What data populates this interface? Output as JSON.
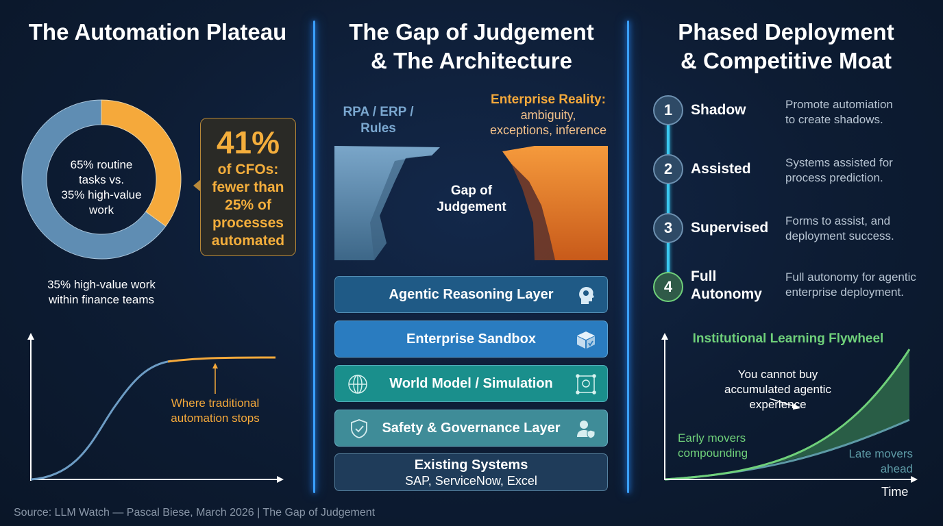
{
  "panels": {
    "left": {
      "title": "The Automation Plateau",
      "donut": {
        "center_line1": "65% routine",
        "center_line2": "tasks vs.",
        "center_line3": "35% high-value",
        "center_line4": "work",
        "caption_line1": "35% high-value work",
        "caption_line2": "within finance teams"
      },
      "callout": {
        "value": "41%",
        "line1": "of CFOs:",
        "line2": "fewer than",
        "line3": "25% of",
        "line4": "processes",
        "line5": "automated"
      },
      "plateau_label_line1": "Where traditional",
      "plateau_label_line2": "automation stops"
    },
    "middle": {
      "title_line1": "The Gap of Judgement",
      "title_line2": "& The Architecture",
      "left_cliff_line1": "RPA / ERP /",
      "left_cliff_line2": "Rules",
      "right_cliff_heading": "Enterprise Reality:",
      "right_cliff_line1": "ambiguity,",
      "right_cliff_line2": "exceptions, inference",
      "gap_line1": "Gap of",
      "gap_line2": "Judgement",
      "layers": [
        {
          "label": "Agentic Reasoning Layer",
          "icon": "head-gear-icon",
          "color": "#1f5a86"
        },
        {
          "label": "Enterprise Sandbox",
          "icon": "box-check-icon",
          "color": "#2a7cc0"
        },
        {
          "label": "World Model / Simulation",
          "icon": "globe-icon",
          "icon_right": "simulation-frame-icon",
          "color": "#1a8f8c"
        },
        {
          "label": "Safety & Governance Layer",
          "icon": "shield-check-icon",
          "icon_right": "user-shield-icon",
          "color": "#3f8c98"
        },
        {
          "label": "Existing Systems",
          "sub": "SAP, ServiceNow, Excel",
          "color": "#1f3c5a"
        }
      ]
    },
    "right": {
      "title_line1": "Phased Deployment",
      "title_line2": "& Competitive Moat",
      "steps": [
        {
          "num": "1",
          "label": "Shadow",
          "desc1": "Promote automiation",
          "desc2": "to create shadows."
        },
        {
          "num": "2",
          "label": "Assisted",
          "desc1": "Systems assisted for",
          "desc2": "process prediction."
        },
        {
          "num": "3",
          "label": "Supervised",
          "desc1": "Forms to assist, and",
          "desc2": "deployment success."
        },
        {
          "num": "4",
          "label1": "Full",
          "label2": "Autonomy",
          "desc1": "Full autonomy for agentic",
          "desc2": "enterprise deployment."
        }
      ],
      "flywheel": {
        "title": "Institutional Learning Flywheel",
        "annot1": "You cannot buy",
        "annot2": "accumulated agentic",
        "annot3": "experience",
        "early1": "Early movers",
        "early2": "compounding",
        "late1": "Late movers",
        "late2": "ahead",
        "xlabel": "Time"
      }
    }
  },
  "chart_data": [
    {
      "type": "pie",
      "donut": true,
      "slices": [
        {
          "label": "routine tasks",
          "value": 65,
          "color": "#5f8db3"
        },
        {
          "label": "high-value work",
          "value": 35,
          "color": "#f5a93b"
        }
      ]
    },
    {
      "type": "line",
      "shape": "s-curve plateau",
      "annotation": "Where traditional automation stops",
      "colors": [
        "#5f8db3",
        "#f5a93b"
      ]
    },
    {
      "type": "area",
      "title": "Institutional Learning Flywheel",
      "xlabel": "Time",
      "series": [
        {
          "name": "Early movers compounding",
          "color": "#6fd07a"
        },
        {
          "name": "Late movers ahead",
          "color": "#5d9aa6"
        }
      ]
    }
  ],
  "footer": "Source: LLM Watch — Pascal Biese, March 2026 | The Gap of Judgement"
}
